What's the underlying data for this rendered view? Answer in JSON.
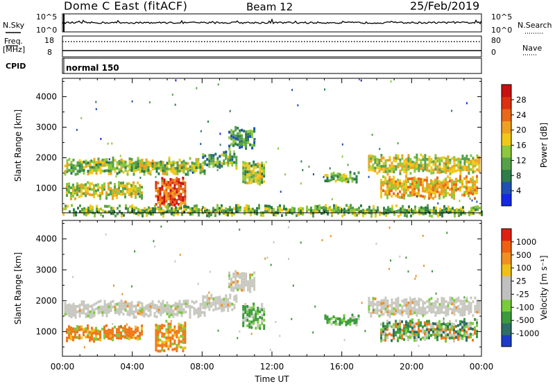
{
  "header": {
    "title": "Dome C East (fitACF)",
    "beam": "Beam 12",
    "date": "25/Feb/2019"
  },
  "top_panels": {
    "nsky_label": "N.Sky",
    "nsearch_label": "N.Search",
    "noise_ticks": [
      "10^5",
      "10^0"
    ],
    "freq_label": "Freq.",
    "freq_unit": "[MHz]",
    "freq_ticks": [
      "18",
      "8"
    ],
    "nave_label": "Nave",
    "nave_ticks": [
      "80",
      "0"
    ],
    "cpid_label": "CPID",
    "cpid_value": "normal 150"
  },
  "chart_data": [
    {
      "type": "heatmap",
      "name": "power-panel",
      "xlabel": "",
      "ylabel": "Slant Range [km]",
      "xlim": [
        0,
        24
      ],
      "ylim": [
        200,
        4600
      ],
      "yticks": [
        "4000",
        "3000",
        "2000",
        "1000"
      ],
      "colorbar": {
        "label": "Power [dB]",
        "ticks": [
          "28",
          "24",
          "20",
          "16",
          "12",
          "8",
          "4"
        ],
        "colors": [
          "#1428e6",
          "#2050b4",
          "#2e7d4a",
          "#56a04a",
          "#8cc83c",
          "#f0c818",
          "#f0a020",
          "#e86818",
          "#dc3010",
          "#c81010"
        ]
      },
      "echo_bands": [
        {
          "t0": 0.1,
          "t1": 8.2,
          "r0": 1550,
          "r1": 1950,
          "level": 0.45
        },
        {
          "t0": 8.0,
          "t1": 10.0,
          "r0": 1750,
          "r1": 2150,
          "level": 0.35
        },
        {
          "t0": 9.5,
          "t1": 11.0,
          "r0": 2350,
          "r1": 2950,
          "level": 0.3
        },
        {
          "t0": 10.3,
          "t1": 11.5,
          "r0": 1150,
          "r1": 1850,
          "level": 0.45
        },
        {
          "t0": 0.2,
          "t1": 4.5,
          "r0": 750,
          "r1": 1150,
          "level": 0.5
        },
        {
          "t0": 5.3,
          "t1": 7.0,
          "r0": 450,
          "r1": 1300,
          "level": 0.8
        },
        {
          "t0": 15.0,
          "t1": 17.0,
          "r0": 1250,
          "r1": 1500,
          "level": 0.4
        },
        {
          "t0": 17.5,
          "t1": 23.9,
          "r0": 1550,
          "r1": 2050,
          "level": 0.5
        },
        {
          "t0": 18.2,
          "t1": 23.8,
          "r0": 800,
          "r1": 1350,
          "level": 0.6
        },
        {
          "t0": 0.0,
          "t1": 24.0,
          "r0": 200,
          "r1": 400,
          "level": 0.4
        }
      ]
    },
    {
      "type": "heatmap",
      "name": "velocity-panel",
      "xlabel": "Time UT",
      "ylabel": "Slant Range [km]",
      "xlim": [
        0,
        24
      ],
      "ylim": [
        200,
        4600
      ],
      "xticks": [
        "00:00",
        "04:00",
        "08:00",
        "12:00",
        "16:00",
        "20:00",
        "00:00"
      ],
      "yticks": [
        "4000",
        "3000",
        "2000",
        "1000"
      ],
      "colorbar": {
        "label": "Velocity [m s⁻¹]",
        "ticks": [
          "1000",
          "500",
          "100",
          "25",
          "-25",
          "-100",
          "-500",
          "-1000"
        ],
        "colors": [
          "#1c3cc8",
          "#2e6e64",
          "#3c9a3c",
          "#78cc3c",
          "#c0c0c0",
          "#c0c0c0",
          "#f0c018",
          "#f09020",
          "#f06010",
          "#e02010"
        ]
      },
      "echo_bands": [
        {
          "t0": 0.1,
          "t1": 8.2,
          "r0": 1550,
          "r1": 1950,
          "vel": "grey"
        },
        {
          "t0": 8.0,
          "t1": 10.0,
          "r0": 1750,
          "r1": 2150,
          "vel": "grey"
        },
        {
          "t0": 9.5,
          "t1": 11.0,
          "r0": 2350,
          "r1": 2950,
          "vel": "grey"
        },
        {
          "t0": 10.3,
          "t1": 11.5,
          "r0": 1150,
          "r1": 1850,
          "vel": "green"
        },
        {
          "t0": 0.2,
          "t1": 4.5,
          "r0": 750,
          "r1": 1150,
          "vel": "orange"
        },
        {
          "t0": 5.3,
          "t1": 7.0,
          "r0": 450,
          "r1": 1300,
          "vel": "orange"
        },
        {
          "t0": 15.0,
          "t1": 17.0,
          "r0": 1250,
          "r1": 1500,
          "vel": "green"
        },
        {
          "t0": 17.5,
          "t1": 23.9,
          "r0": 1550,
          "r1": 2050,
          "vel": "grey"
        },
        {
          "t0": 18.2,
          "t1": 23.8,
          "r0": 800,
          "r1": 1350,
          "vel": "mixed"
        }
      ]
    }
  ]
}
